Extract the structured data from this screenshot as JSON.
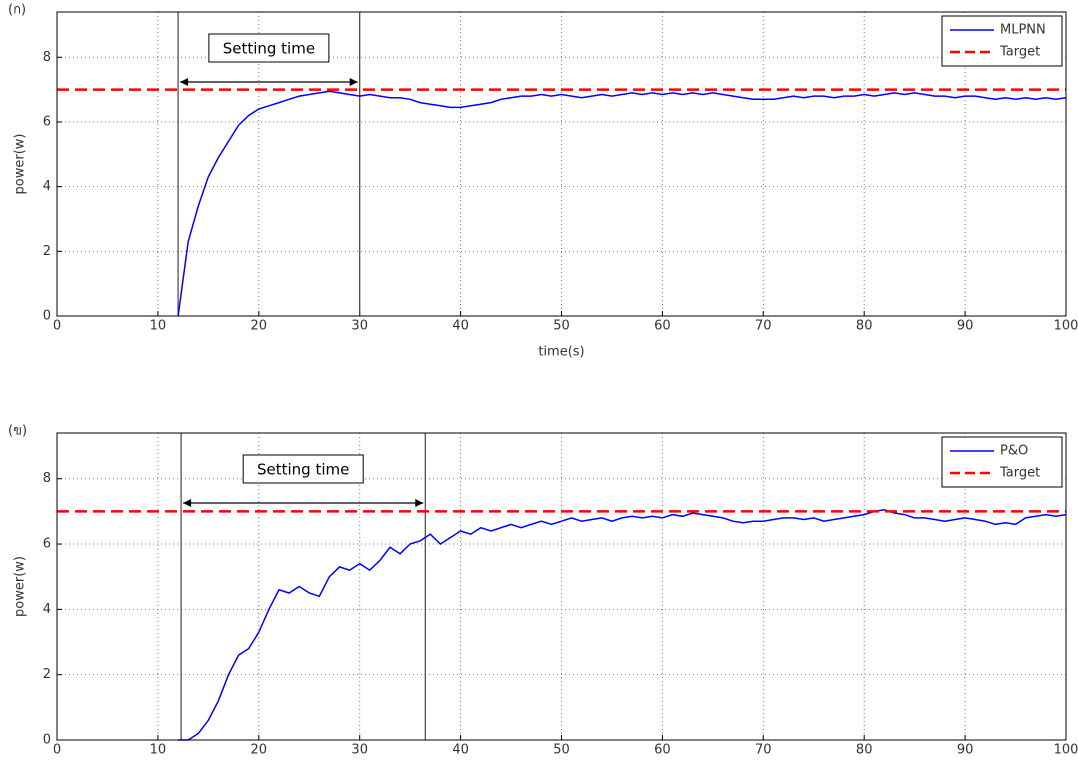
{
  "chart_data": [
    {
      "type": "line",
      "panel_label": "(ก)",
      "xlabel": "time(s)",
      "ylabel": "power(w)",
      "xlim": [
        0,
        100
      ],
      "ylim": [
        0,
        9.4
      ],
      "xticks": [
        0,
        10,
        20,
        30,
        40,
        50,
        60,
        70,
        80,
        90,
        100
      ],
      "yticks": [
        0,
        2,
        4,
        6,
        8
      ],
      "grid": true,
      "legend": "upper right",
      "setting_time": {
        "label": "Setting time",
        "x": [
          12,
          30
        ]
      },
      "series": [
        {
          "name": "MLPNN",
          "color": "#0000ff",
          "style": "solid",
          "x": [
            12,
            13,
            14,
            15,
            16,
            17,
            18,
            19,
            20,
            21,
            22,
            23,
            24,
            25,
            26,
            27,
            28,
            29,
            30,
            31,
            32,
            33,
            34,
            35,
            36,
            37,
            38,
            39,
            40,
            41,
            42,
            43,
            44,
            45,
            46,
            47,
            48,
            49,
            50,
            51,
            52,
            53,
            54,
            55,
            56,
            57,
            58,
            59,
            60,
            61,
            62,
            63,
            64,
            65,
            66,
            67,
            68,
            69,
            70,
            71,
            72,
            73,
            74,
            75,
            76,
            77,
            78,
            79,
            80,
            81,
            82,
            83,
            84,
            85,
            86,
            87,
            88,
            89,
            90,
            91,
            92,
            93,
            94,
            95,
            96,
            97,
            98,
            99,
            100
          ],
          "values": [
            0,
            2.3,
            3.4,
            4.3,
            4.9,
            5.4,
            5.9,
            6.2,
            6.4,
            6.5,
            6.6,
            6.7,
            6.8,
            6.85,
            6.9,
            6.95,
            6.9,
            6.85,
            6.8,
            6.85,
            6.8,
            6.75,
            6.75,
            6.7,
            6.6,
            6.55,
            6.5,
            6.45,
            6.45,
            6.5,
            6.55,
            6.6,
            6.7,
            6.75,
            6.8,
            6.8,
            6.85,
            6.8,
            6.85,
            6.8,
            6.75,
            6.8,
            6.85,
            6.8,
            6.85,
            6.9,
            6.85,
            6.9,
            6.85,
            6.9,
            6.85,
            6.9,
            6.85,
            6.9,
            6.85,
            6.8,
            6.75,
            6.7,
            6.7,
            6.7,
            6.75,
            6.8,
            6.75,
            6.8,
            6.8,
            6.75,
            6.8,
            6.8,
            6.85,
            6.8,
            6.85,
            6.9,
            6.85,
            6.9,
            6.85,
            6.8,
            6.8,
            6.75,
            6.8,
            6.8,
            6.75,
            6.7,
            6.75,
            6.7,
            6.75,
            6.7,
            6.75,
            6.7,
            6.75
          ]
        },
        {
          "name": "Target",
          "color": "#ff0000",
          "style": "dashed",
          "x": [
            0,
            100
          ],
          "values": [
            7,
            7
          ]
        }
      ]
    },
    {
      "type": "line",
      "panel_label": "(ข)",
      "ylabel": "power(w)",
      "xlim": [
        0,
        100
      ],
      "ylim": [
        0,
        9.4
      ],
      "xticks": [
        0,
        10,
        20,
        30,
        40,
        50,
        60,
        70,
        80,
        90,
        100
      ],
      "yticks": [
        0,
        2,
        4,
        6,
        8
      ],
      "grid": true,
      "legend": "upper right",
      "setting_time": {
        "label": "Setting time",
        "x": [
          12.3,
          36.5
        ]
      },
      "series": [
        {
          "name": "P&O",
          "color": "#0000ff",
          "style": "solid",
          "x": [
            12,
            13,
            14,
            15,
            16,
            17,
            18,
            19,
            20,
            21,
            22,
            23,
            24,
            25,
            26,
            27,
            28,
            29,
            30,
            31,
            32,
            33,
            34,
            35,
            36,
            37,
            38,
            39,
            40,
            41,
            42,
            43,
            44,
            45,
            46,
            47,
            48,
            49,
            50,
            51,
            52,
            53,
            54,
            55,
            56,
            57,
            58,
            59,
            60,
            61,
            62,
            63,
            64,
            65,
            66,
            67,
            68,
            69,
            70,
            71,
            72,
            73,
            74,
            75,
            76,
            77,
            78,
            79,
            80,
            81,
            82,
            83,
            84,
            85,
            86,
            87,
            88,
            89,
            90,
            91,
            92,
            93,
            94,
            95,
            96,
            97,
            98,
            99,
            100
          ],
          "values": [
            0,
            0,
            0.2,
            0.6,
            1.2,
            2.0,
            2.6,
            2.8,
            3.3,
            4.0,
            4.6,
            4.5,
            4.7,
            4.5,
            4.4,
            5.0,
            5.3,
            5.2,
            5.4,
            5.2,
            5.5,
            5.9,
            5.7,
            6.0,
            6.1,
            6.3,
            6.0,
            6.2,
            6.4,
            6.3,
            6.5,
            6.4,
            6.5,
            6.6,
            6.5,
            6.6,
            6.7,
            6.6,
            6.7,
            6.8,
            6.7,
            6.75,
            6.8,
            6.7,
            6.8,
            6.85,
            6.8,
            6.85,
            6.8,
            6.9,
            6.85,
            6.95,
            6.9,
            6.85,
            6.8,
            6.7,
            6.65,
            6.7,
            6.7,
            6.75,
            6.8,
            6.8,
            6.75,
            6.8,
            6.7,
            6.75,
            6.8,
            6.85,
            6.9,
            7.0,
            7.05,
            6.95,
            6.9,
            6.8,
            6.8,
            6.75,
            6.7,
            6.75,
            6.8,
            6.75,
            6.7,
            6.6,
            6.65,
            6.6,
            6.8,
            6.85,
            6.9,
            6.85,
            6.9
          ]
        },
        {
          "name": "Target",
          "color": "#ff0000",
          "style": "dashed",
          "x": [
            0,
            100
          ],
          "values": [
            7,
            7
          ]
        }
      ]
    }
  ]
}
